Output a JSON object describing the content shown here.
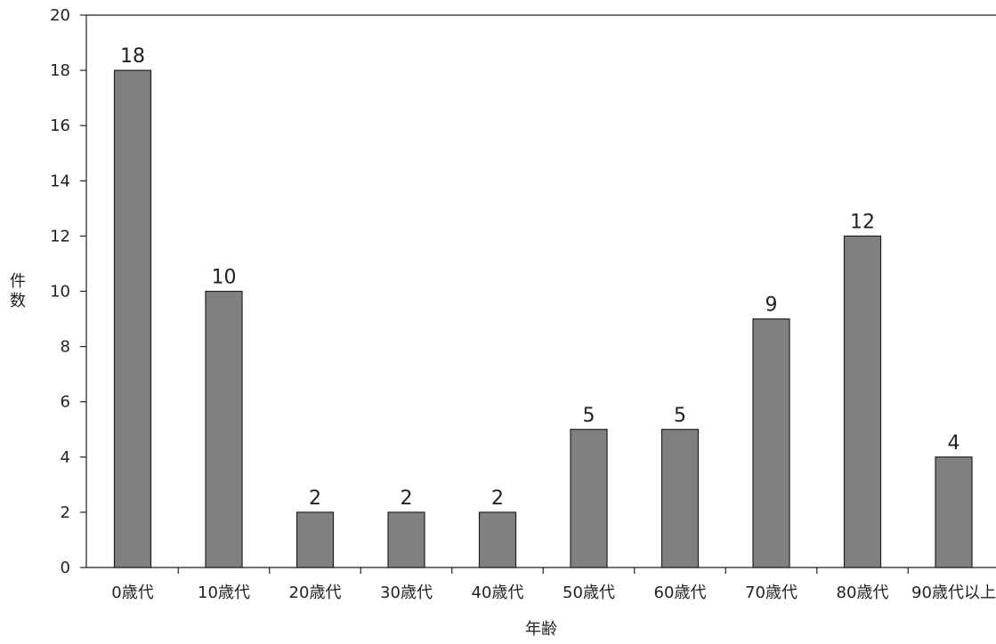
{
  "chart_data": {
    "type": "bar",
    "categories": [
      "0歳代",
      "10歳代",
      "20歳代",
      "30歳代",
      "40歳代",
      "50歳代",
      "60歳代",
      "70歳代",
      "80歳代",
      "90歳代以上"
    ],
    "values": [
      18,
      10,
      2,
      2,
      2,
      5,
      5,
      9,
      12,
      4
    ],
    "xlabel": "年齢",
    "ylabel": "件数",
    "ylim": [
      0,
      20
    ],
    "yticks": [
      "0",
      "2",
      "4",
      "6",
      "8",
      "10",
      "12",
      "14",
      "16",
      "18",
      "20"
    ],
    "grid": false,
    "bar_color": "#808083",
    "bar_edge_color": "#231f20"
  }
}
